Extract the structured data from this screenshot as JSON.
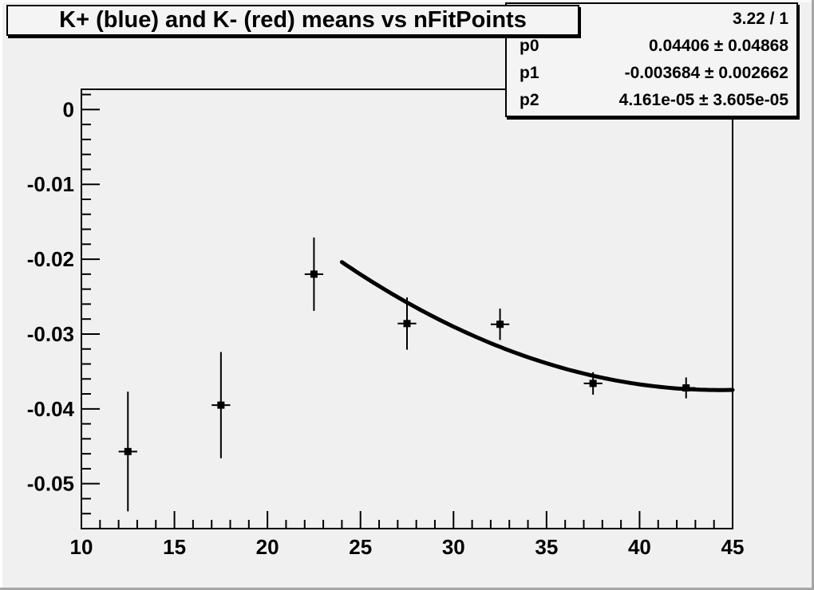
{
  "title": "K+ (blue) and K- (red) means vs nFitPoints",
  "stats": {
    "rows": [
      {
        "label": "",
        "value": "3.22 / 1"
      },
      {
        "label": "p0",
        "value": "0.04406 ± 0.04868"
      },
      {
        "label": "p1",
        "value": "-0.003684 ± 0.002662"
      },
      {
        "label": "p2",
        "value": "4.161e-05 ± 3.605e-05"
      }
    ]
  },
  "colors": {
    "canvas_bg": "#f0f0f0",
    "box_bg": "#f4f4f4",
    "ink": "#000000",
    "bevel_shadow": "#a6a6a6"
  },
  "chart_data": {
    "type": "scatter",
    "title": "K+ (blue) and K- (red) means vs nFitPoints",
    "xlabel": "",
    "ylabel": "",
    "xlim": [
      10,
      45
    ],
    "ylim": [
      -0.056,
      0.0027
    ],
    "grid": false,
    "legend": "none",
    "x_major_ticks": [
      10,
      15,
      20,
      25,
      30,
      35,
      40,
      45
    ],
    "x_tick_labels": [
      "10",
      "15",
      "20",
      "25",
      "30",
      "35",
      "40",
      "45"
    ],
    "x_minor_step": 1,
    "y_major_ticks": [
      0,
      -0.01,
      -0.02,
      -0.03,
      -0.04,
      -0.05
    ],
    "y_tick_labels": [
      "0",
      "-0.01",
      "-0.02",
      "-0.03",
      "-0.04",
      "-0.05"
    ],
    "y_minor_step": 0.002,
    "series": [
      {
        "name": "means",
        "marker": "square",
        "marker_size": 9,
        "color": "#000000",
        "points": [
          {
            "x": 12.5,
            "y": -0.0457,
            "ex": 0.5,
            "ey": 0.008
          },
          {
            "x": 17.5,
            "y": -0.0395,
            "ex": 0.5,
            "ey": 0.0071
          },
          {
            "x": 22.5,
            "y": -0.022,
            "ex": 0.5,
            "ey": 0.0049
          },
          {
            "x": 27.5,
            "y": -0.0286,
            "ex": 0.5,
            "ey": 0.0035
          },
          {
            "x": 32.5,
            "y": -0.0287,
            "ex": 0.5,
            "ey": 0.0021
          },
          {
            "x": 37.5,
            "y": -0.0366,
            "ex": 0.5,
            "ey": 0.0015
          },
          {
            "x": 42.5,
            "y": -0.0372,
            "ex": 0.5,
            "ey": 0.0014
          }
        ]
      }
    ],
    "fit": {
      "type": "pol2",
      "chi2_ndf": "3.22 / 1",
      "p0": 0.04406,
      "p1": -0.003684,
      "p2": 4.161e-05,
      "x_range": [
        24,
        45
      ],
      "color": "#000000",
      "line_width": 5
    }
  }
}
